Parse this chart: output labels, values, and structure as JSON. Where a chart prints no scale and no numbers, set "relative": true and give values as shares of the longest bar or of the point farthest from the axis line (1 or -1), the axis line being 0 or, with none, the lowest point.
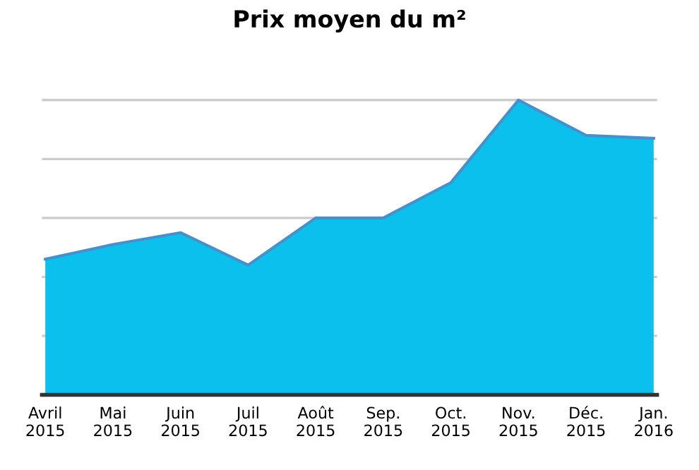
{
  "chart_data": {
    "type": "area",
    "title": "Prix moyen du m²",
    "relative": true,
    "grid": "y",
    "categories": [
      "Avril\n2015",
      "Mai\n2015",
      "Juin\n2015",
      "Juil\n2015",
      "Août\n2015",
      "Sep.\n2015",
      "Oct.\n2015",
      "Nov.\n2015",
      "Déc.\n2015",
      "Jan.\n2016"
    ],
    "series": [
      {
        "color": "#0bc0ec",
        "values": [
          0.46,
          0.51,
          0.55,
          0.44,
          0.6,
          0.6,
          0.72,
          1,
          0.88,
          0.87
        ]
      }
    ]
  }
}
